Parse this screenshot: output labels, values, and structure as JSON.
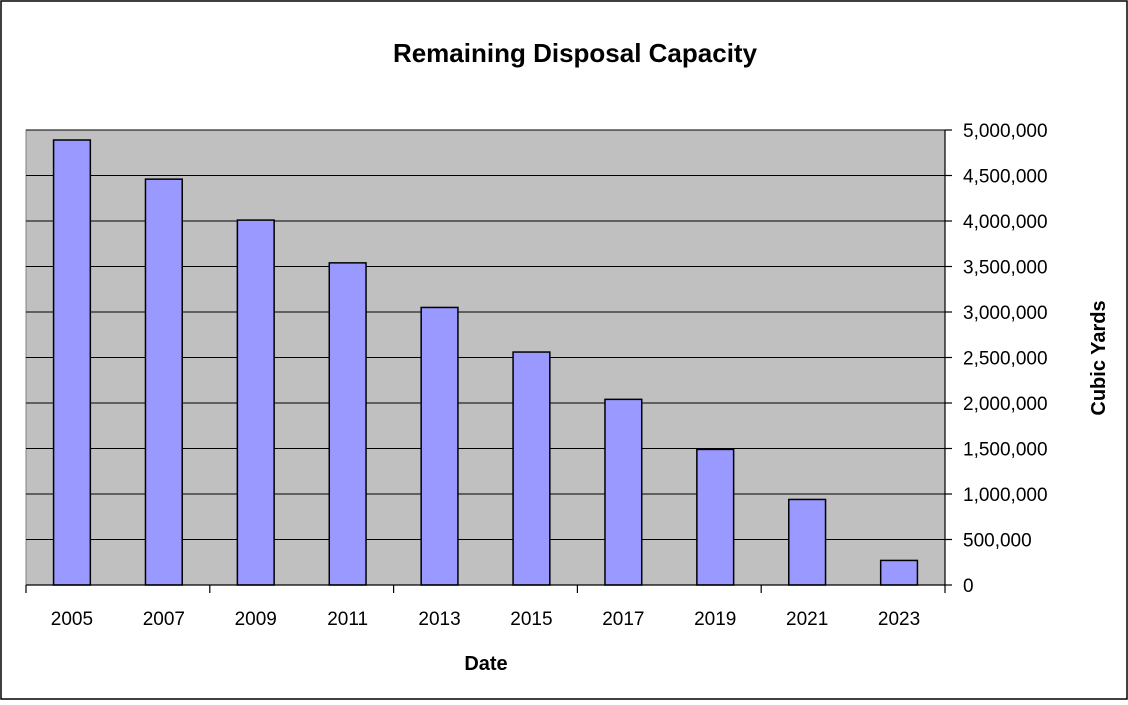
{
  "chart_data": {
    "type": "bar",
    "title": "Remaining Disposal Capacity",
    "xlabel": "Date",
    "ylabel": "Cubic Yards",
    "categories": [
      "2005",
      "2007",
      "2009",
      "2011",
      "2013",
      "2015",
      "2017",
      "2019",
      "2021",
      "2023"
    ],
    "values": [
      4890000,
      4460000,
      4010000,
      3540000,
      3050000,
      2560000,
      2040000,
      1490000,
      940000,
      270000
    ],
    "ylim": [
      0,
      5000000
    ],
    "y_ticks": [
      0,
      500000,
      1000000,
      1500000,
      2000000,
      2500000,
      3000000,
      3500000,
      4000000,
      4500000,
      5000000
    ],
    "y_tick_labels": [
      "0",
      "500,000",
      "1,000,000",
      "1,500,000",
      "2,000,000",
      "2,500,000",
      "3,000,000",
      "3,500,000",
      "4,000,000",
      "4,500,000",
      "5,000,000"
    ],
    "y_axis_side": "right",
    "grid": true,
    "legend": "none",
    "colors": {
      "bar_fill": "#9999ff",
      "bar_stroke": "#000000",
      "plot_background": "#c0c0c0",
      "gridline": "#000000",
      "page_background": "#ffffff"
    }
  }
}
